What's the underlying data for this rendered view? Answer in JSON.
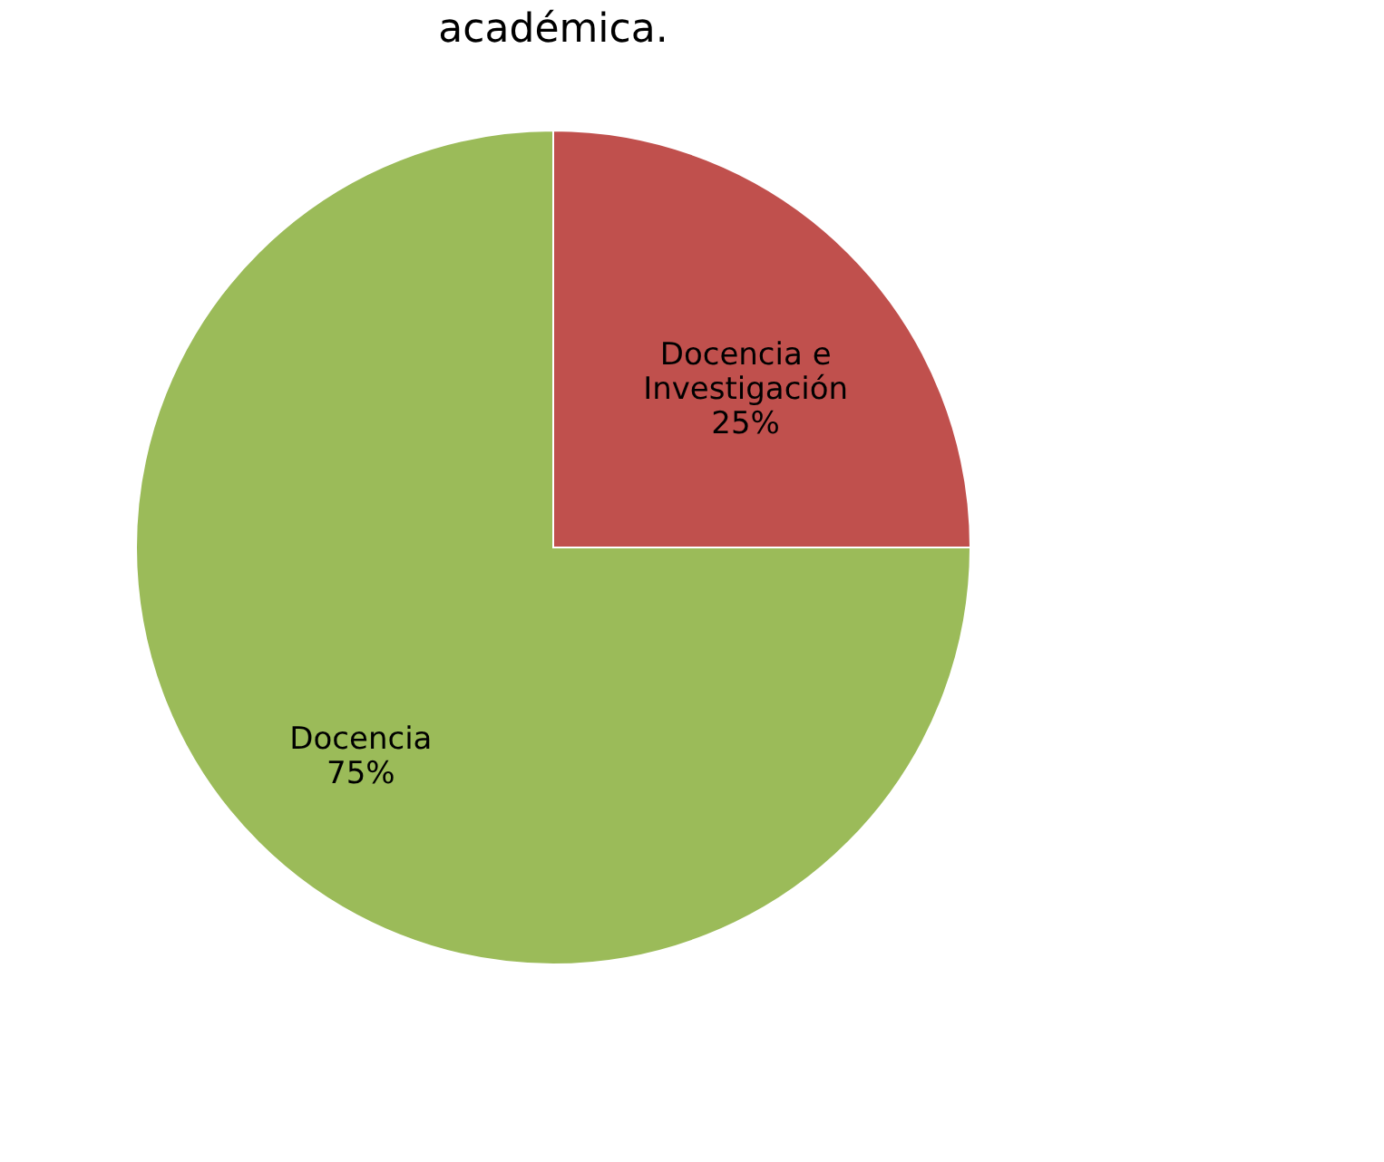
{
  "chart_data": {
    "type": "pie",
    "title": "académica.",
    "categories": [
      "Docencia e Investigación",
      "Docencia"
    ],
    "values": [
      25,
      75
    ],
    "colors": [
      "#c0504d",
      "#9bbb59"
    ],
    "value_labels": [
      "25%",
      "75%"
    ],
    "legend": false
  }
}
